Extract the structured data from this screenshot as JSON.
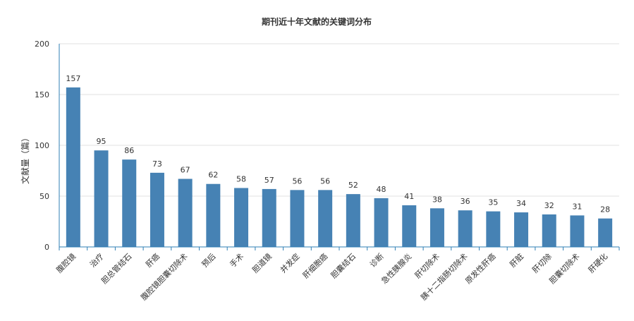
{
  "chart_data": {
    "type": "bar",
    "title": "期刊近十年文献的关键词分布",
    "ylabel": "文献量（篇）",
    "xlabel": "",
    "ylim": [
      0,
      200
    ],
    "yticks": [
      0,
      50,
      100,
      150,
      200
    ],
    "grid": true,
    "categories": [
      "腹腔镜",
      "治疗",
      "胆总管结石",
      "肝癌",
      "腹腔镜胆囊切除术",
      "预后",
      "手术",
      "胆道镜",
      "并发症",
      "肝细胞癌",
      "胆囊结石",
      "诊断",
      "急性胰腺炎",
      "肝切除术",
      "胰十二指肠切除术",
      "原发性肝癌",
      "肝脏",
      "肝切除",
      "胆囊切除术",
      "肝硬化"
    ],
    "values": [
      157,
      95,
      86,
      73,
      67,
      62,
      58,
      57,
      56,
      56,
      52,
      48,
      41,
      38,
      36,
      35,
      34,
      32,
      31,
      28
    ],
    "bar_color": "#4682b4",
    "axis_color": "#2f7fb5"
  }
}
